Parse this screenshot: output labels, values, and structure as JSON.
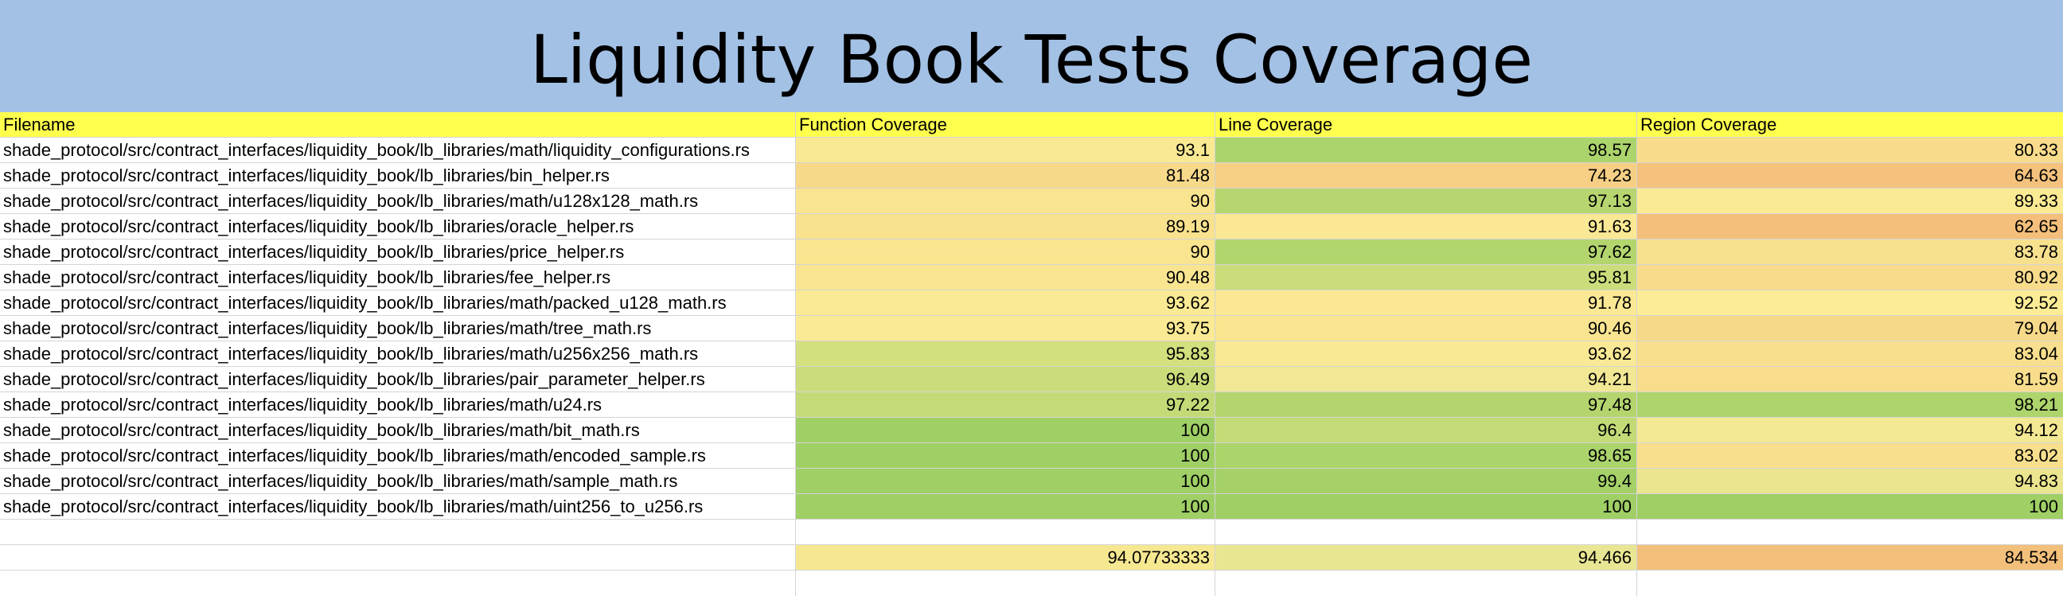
{
  "title": "Liquidity Book Tests Coverage",
  "columns": [
    "Filename",
    "Function Coverage",
    "Line Coverage",
    "Region Coverage"
  ],
  "rows": [
    {
      "file": "shade_protocol/src/contract_interfaces/liquidity_book/lb_libraries/math/liquidity_configurations.rs",
      "func": "93.1",
      "line": "98.57",
      "region": "80.33",
      "func_color": "#f9e993",
      "line_color": "#acd46c",
      "region_color": "#f8dc8c"
    },
    {
      "file": "shade_protocol/src/contract_interfaces/liquidity_book/lb_libraries/bin_helper.rs",
      "func": "81.48",
      "line": "74.23",
      "region": "64.63",
      "func_color": "#f7d98a",
      "line_color": "#f6cf84",
      "region_color": "#f4c27d"
    },
    {
      "file": "shade_protocol/src/contract_interfaces/liquidity_book/lb_libraries/math/u128x128_math.rs",
      "func": "90",
      "line": "97.13",
      "region": "89.33",
      "func_color": "#f9e48f",
      "line_color": "#b7d66f",
      "region_color": "#fbea94"
    },
    {
      "file": "shade_protocol/src/contract_interfaces/liquidity_book/lb_libraries/oracle_helper.rs",
      "func": "89.19",
      "line": "91.63",
      "region": "62.65",
      "func_color": "#f9e28e",
      "line_color": "#fae895",
      "region_color": "#f3bf7b"
    },
    {
      "file": "shade_protocol/src/contract_interfaces/liquidity_book/lb_libraries/price_helper.rs",
      "func": "90",
      "line": "97.62",
      "region": "83.78",
      "func_color": "#f9e48f",
      "line_color": "#b3d56e",
      "region_color": "#f8e18e"
    },
    {
      "file": "shade_protocol/src/contract_interfaces/liquidity_book/lb_libraries/fee_helper.rs",
      "func": "90.48",
      "line": "95.81",
      "region": "80.92",
      "func_color": "#f9e590",
      "line_color": "#cbdd7b",
      "region_color": "#f8dc8c"
    },
    {
      "file": "shade_protocol/src/contract_interfaces/liquidity_book/lb_libraries/math/packed_u128_math.rs",
      "func": "93.62",
      "line": "91.78",
      "region": "92.52",
      "func_color": "#faea93",
      "line_color": "#fae894",
      "region_color": "#fcec95"
    },
    {
      "file": "shade_protocol/src/contract_interfaces/liquidity_book/lb_libraries/math/tree_math.rs",
      "func": "93.75",
      "line": "90.46",
      "region": "79.04",
      "func_color": "#faea93",
      "line_color": "#f9e590",
      "region_color": "#f7d98a"
    },
    {
      "file": "shade_protocol/src/contract_interfaces/liquidity_book/lb_libraries/math/u256x256_math.rs",
      "func": "95.83",
      "line": "93.62",
      "region": "83.04",
      "func_color": "#d4df7e",
      "line_color": "#f9e994",
      "region_color": "#f8df8d"
    },
    {
      "file": "shade_protocol/src/contract_interfaces/liquidity_book/lb_libraries/pair_parameter_helper.rs",
      "func": "96.49",
      "line": "94.21",
      "region": "81.59",
      "func_color": "#cbdd7b",
      "line_color": "#f1e794",
      "region_color": "#f8dd8c"
    },
    {
      "file": "shade_protocol/src/contract_interfaces/liquidity_book/lb_libraries/math/u24.rs",
      "func": "97.22",
      "line": "97.48",
      "region": "98.21",
      "func_color": "#c3da77",
      "line_color": "#b4d56e",
      "region_color": "#aed46c"
    },
    {
      "file": "shade_protocol/src/contract_interfaces/liquidity_book/lb_libraries/math/bit_math.rs",
      "func": "100",
      "line": "96.4",
      "region": "94.12",
      "func_color": "#9fcf65",
      "line_color": "#c3da77",
      "region_color": "#f3e893"
    },
    {
      "file": "shade_protocol/src/contract_interfaces/liquidity_book/lb_libraries/math/encoded_sample.rs",
      "func": "100",
      "line": "98.65",
      "region": "83.02",
      "func_color": "#9fcf65",
      "line_color": "#abd46b",
      "region_color": "#f8df8d"
    },
    {
      "file": "shade_protocol/src/contract_interfaces/liquidity_book/lb_libraries/math/sample_math.rs",
      "func": "100",
      "line": "99.4",
      "region": "94.83",
      "func_color": "#9fcf65",
      "line_color": "#a5d168",
      "region_color": "#ebe58f"
    },
    {
      "file": "shade_protocol/src/contract_interfaces/liquidity_book/lb_libraries/math/uint256_to_u256.rs",
      "func": "100",
      "line": "100",
      "region": "100",
      "func_color": "#9fcf65",
      "line_color": "#9fcf65",
      "region_color": "#9fcf65"
    }
  ],
  "totals": {
    "func": "94.07733333",
    "line": "94.466",
    "region": "84.534",
    "func_color": "#f6e890",
    "line_color": "#e9e693",
    "region_color": "#f2c07b"
  },
  "colors": {
    "title_band": "#a3c1e5",
    "header_row": "#ffff4d",
    "top_strip": "#3a7d44"
  }
}
